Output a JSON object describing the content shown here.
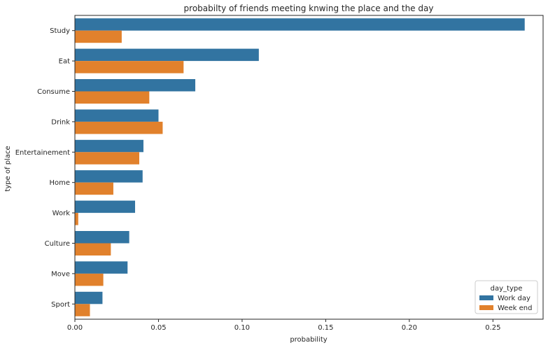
{
  "chart_data": {
    "type": "bar",
    "orientation": "horizontal",
    "title": "probabilty of friends meeting knwing the place and the day",
    "xlabel": "probability",
    "ylabel": "type of place",
    "xlim": [
      0,
      0.28
    ],
    "x_ticks": [
      "0.00",
      "0.05",
      "0.10",
      "0.15",
      "0.20",
      "0.25"
    ],
    "categories": [
      "Study",
      "Eat",
      "Consume",
      "Drink",
      "Entertainement",
      "Home",
      "Work",
      "Culture",
      "Move",
      "Sport"
    ],
    "series": [
      {
        "name": "Work day",
        "color": "#3274a1",
        "values": [
          0.269,
          0.11,
          0.072,
          0.05,
          0.041,
          0.0405,
          0.036,
          0.0325,
          0.0315,
          0.0165
        ]
      },
      {
        "name": "Week end",
        "color": "#e1812c",
        "values": [
          0.028,
          0.065,
          0.0445,
          0.0525,
          0.0385,
          0.023,
          0.002,
          0.0215,
          0.017,
          0.009
        ]
      }
    ],
    "legend": {
      "title": "day_type",
      "placement": "lower-right"
    },
    "grid": false
  }
}
